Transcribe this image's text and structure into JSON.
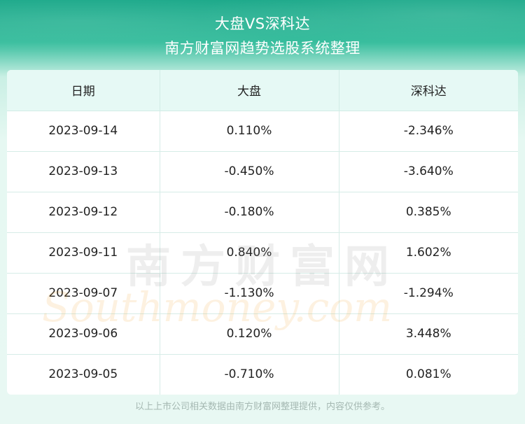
{
  "header": {
    "title": "大盘VS深科达",
    "subtitle": "南方财富网趋势选股系统整理"
  },
  "table": {
    "columns": [
      "日期",
      "大盘",
      "深科达"
    ],
    "rows": [
      [
        "2023-09-14",
        "0.110%",
        "-2.346%"
      ],
      [
        "2023-09-13",
        "-0.450%",
        "-3.640%"
      ],
      [
        "2023-09-12",
        "-0.180%",
        "0.385%"
      ],
      [
        "2023-09-11",
        "0.840%",
        "1.602%"
      ],
      [
        "2023-09-07",
        "-1.130%",
        "-1.294%"
      ],
      [
        "2023-09-06",
        "0.120%",
        "3.448%"
      ],
      [
        "2023-09-05",
        "-0.710%",
        "0.081%"
      ]
    ]
  },
  "watermark": {
    "cn": "南方财富网",
    "en": "Southmoney.com"
  },
  "footer": {
    "note": "以上上市公司相关数据由南方财富网整理提供，内容仅供参考。"
  }
}
